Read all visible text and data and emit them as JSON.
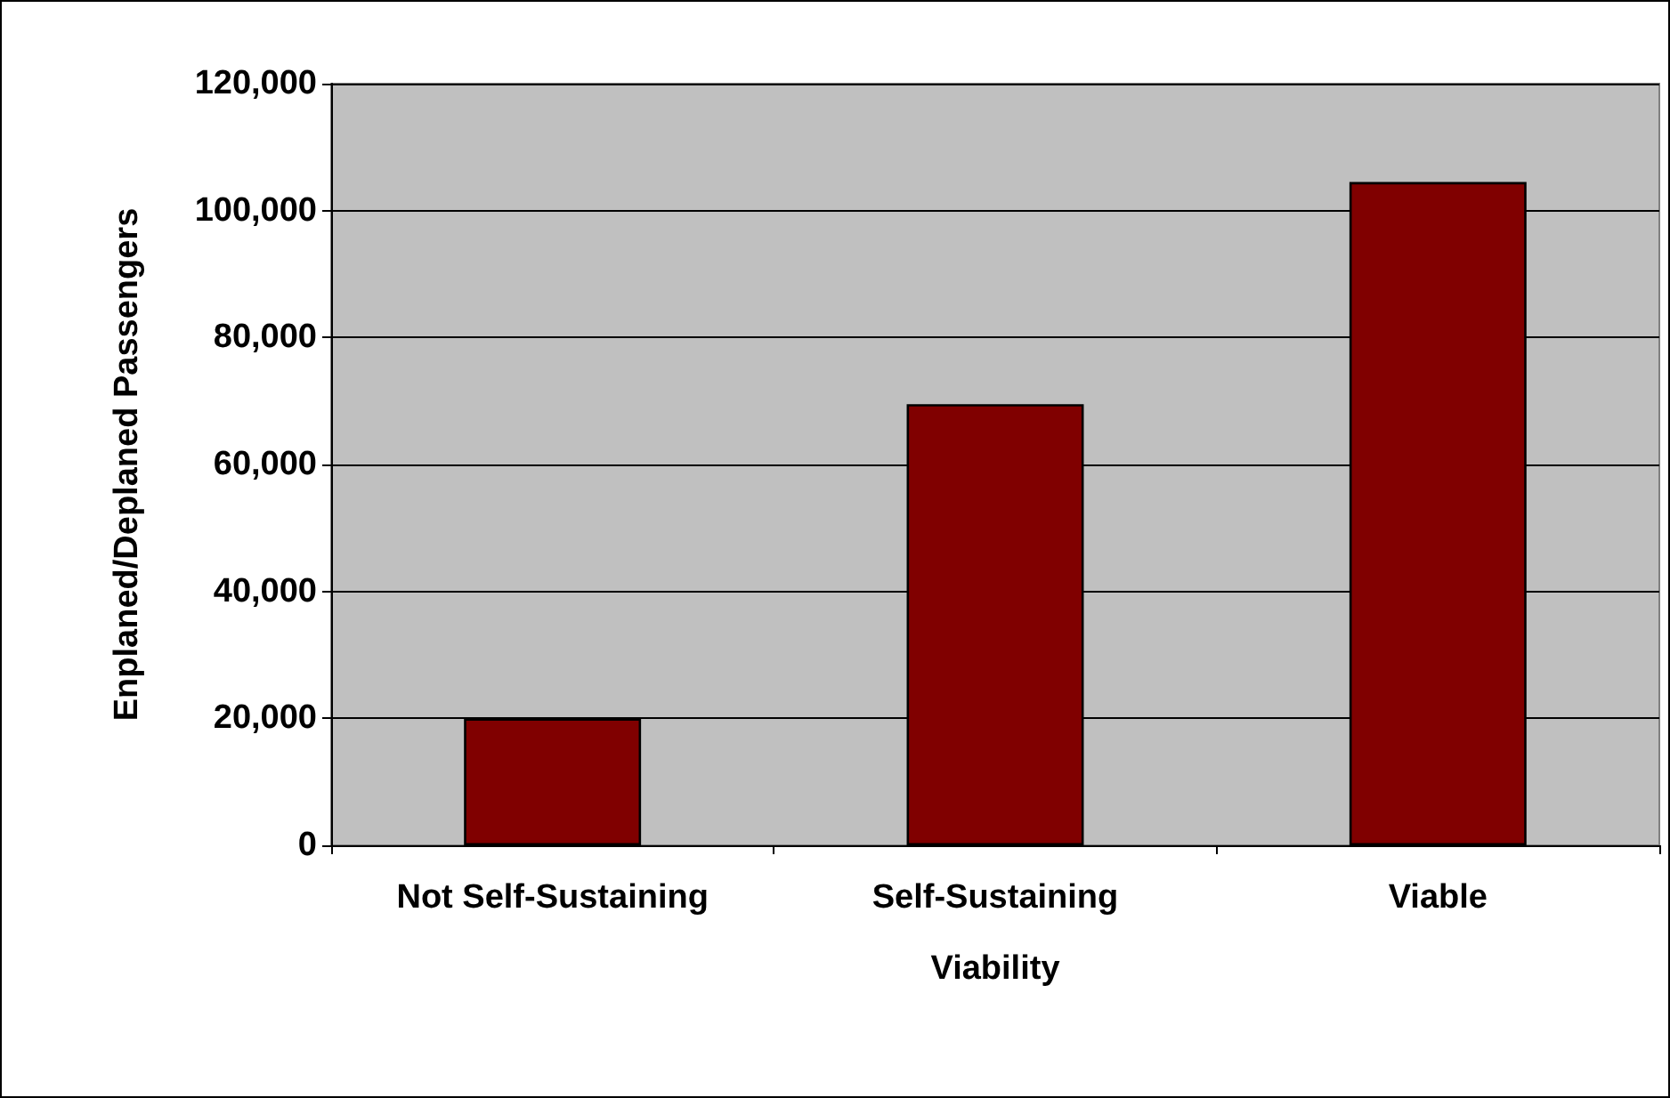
{
  "chart_data": {
    "type": "bar",
    "xlabel": "Viability",
    "ylabel": "Enplaned/Deplaned Passengers",
    "categories": [
      "Not Self-Sustaining",
      "Self-Sustaining",
      "Viable"
    ],
    "values": [
      20000,
      69500,
      104500
    ],
    "color": "#800000",
    "ylim": [
      0,
      120000
    ],
    "yticks": [
      0,
      {
        "value": 20000,
        "label": "20,000"
      },
      {
        "value": 40000,
        "label": "40,000"
      },
      {
        "value": 60000,
        "label": "60,000"
      },
      {
        "value": 80000,
        "label": "80,000"
      },
      {
        "value": 100000,
        "label": "100,000"
      },
      {
        "value": 120000,
        "label": "120,000"
      }
    ],
    "grid": "y"
  }
}
